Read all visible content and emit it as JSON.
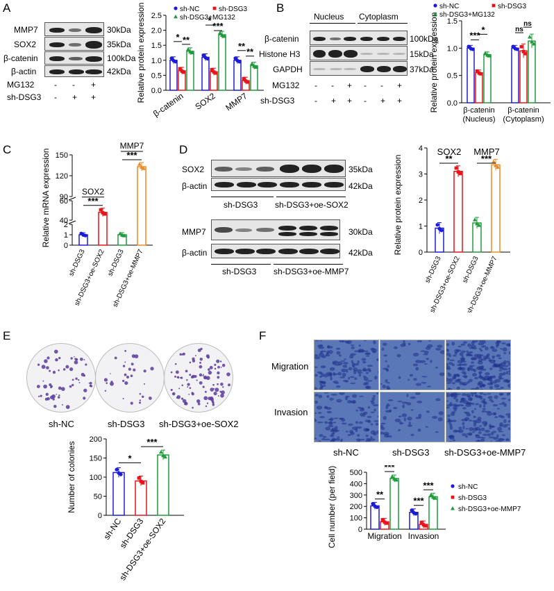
{
  "colors": {
    "nc": "#1c1cd6",
    "dsg3": "#e8141a",
    "third": "#1e9b3a",
    "orange": "#f08a24"
  },
  "panelA": {
    "label": "A",
    "blot_rows": [
      {
        "name": "MMP7",
        "kda": "30kDa"
      },
      {
        "name": "SOX2",
        "kda": "35kDa"
      },
      {
        "name": "β-catenin",
        "kda": "100kDa"
      },
      {
        "name": "β-actin",
        "kda": "42kDa"
      }
    ],
    "mg132": {
      "label": "MG132",
      "signs": [
        "-",
        "-",
        "+"
      ]
    },
    "shdsg3": {
      "label": "sh-DSG3",
      "signs": [
        "-",
        "+",
        "+"
      ]
    },
    "chart": {
      "type": "bar",
      "ylabel": "Relative protein expression",
      "ylim": [
        0,
        2.5
      ],
      "yticks": [
        "0.0",
        "0.5",
        "1.0",
        "1.5",
        "2.0",
        "2.5"
      ],
      "categories": [
        "β-catenin",
        "SOX2",
        "MMP7"
      ],
      "series": [
        {
          "name": "sh-NC",
          "values": [
            1.0,
            1.1,
            1.0
          ]
        },
        {
          "name": "sh-DSG3",
          "values": [
            0.65,
            0.62,
            0.32
          ]
        },
        {
          "name": "sh-DSG3+MG132",
          "values": [
            1.3,
            1.85,
            0.82
          ]
        }
      ],
      "sig": [
        [
          "*",
          "**"
        ],
        [
          "*",
          "***"
        ],
        [
          "**",
          "**"
        ]
      ],
      "legend": [
        "sh-NC",
        "sh-DSG3",
        "sh-DSG3+MG132"
      ]
    }
  },
  "panelB": {
    "label": "B",
    "groups": [
      "Nucleus",
      "Cytoplasm"
    ],
    "blot_rows": [
      {
        "name": "β-catenin",
        "kda": "100kDa"
      },
      {
        "name": "Histone H3",
        "kda": "15kDa"
      },
      {
        "name": "GAPDH",
        "kda": "37kDa"
      }
    ],
    "mg132": {
      "label": "MG132",
      "signs": [
        "-",
        "-",
        "+",
        "-",
        "-",
        "+"
      ]
    },
    "shdsg3": {
      "label": "sh-DSG3",
      "signs": [
        "-",
        "+",
        "+",
        "-",
        "+",
        "+"
      ]
    },
    "chart": {
      "type": "bar",
      "ylabel": "Relative protein expression",
      "ylim": [
        0,
        1.5
      ],
      "yticks": [
        "0.0",
        "0.5",
        "1.0",
        "1.5"
      ],
      "categories": [
        "β-catenin\n(Nucleus)",
        "β-catenin\n(Cytoplasm)"
      ],
      "cat_line1": [
        "β-catenin",
        "β-catenin"
      ],
      "cat_line2": [
        "(Nucleus)",
        "(Cytoplasm)"
      ],
      "series": [
        {
          "name": "sh-NC",
          "values": [
            1.0,
            1.0
          ]
        },
        {
          "name": "sh-DSG3",
          "values": [
            0.55,
            0.95
          ]
        },
        {
          "name": "sh-DSG3+MG132",
          "values": [
            0.88,
            1.13
          ]
        }
      ],
      "sig": [
        [
          "***",
          "*"
        ],
        [
          "ns",
          "ns"
        ]
      ],
      "legend": [
        "sh-NC",
        "sh-DSG3",
        "sh-DSG3+MG132"
      ]
    }
  },
  "panelC": {
    "label": "C",
    "chart": {
      "type": "bar",
      "ylabel": "Relative mRNA expression",
      "yticks_low": [
        "0",
        "1",
        "2"
      ],
      "yticks_mid": [
        "40",
        "60"
      ],
      "yticks_high": [
        "90",
        "120",
        "150"
      ],
      "categories": [
        "sh-DSG3",
        "sh-DSG3+oe-SOX2",
        "sh-DSG3",
        "sh-DSG3+oe-MMP7"
      ],
      "values": [
        1.0,
        48,
        1.0,
        133
      ],
      "group_labels": [
        "SOX2",
        "MMP7"
      ],
      "sig": [
        "***",
        "***"
      ]
    }
  },
  "panelD": {
    "label": "D",
    "blot1": [
      {
        "name": "SOX2",
        "kda": "35kDa"
      },
      {
        "name": "β-actin",
        "kda": "42kDa"
      }
    ],
    "blot1_groups": [
      "sh-DSG3",
      "sh-DSG3+oe-SOX2"
    ],
    "blot2": [
      {
        "name": "MMP7",
        "kda": "30kDa"
      },
      {
        "name": "β-actin",
        "kda": "42kDa"
      }
    ],
    "blot2_groups": [
      "sh-DSG3",
      "sh-DSG3+oe-MMP7"
    ],
    "chart": {
      "type": "bar",
      "ylabel": "Relative protein expression",
      "ylim": [
        0,
        4
      ],
      "yticks": [
        "0",
        "1",
        "2",
        "3",
        "4"
      ],
      "categories": [
        "sh-DSG3",
        "sh-DSG3+oe-SOX2",
        "sh-DSG3",
        "sh-DSG3+oe-MMP7"
      ],
      "values": [
        0.92,
        3.1,
        1.12,
        3.35
      ],
      "group_labels": [
        "SOX2",
        "MMP7"
      ],
      "sig": [
        "**",
        "***"
      ]
    }
  },
  "panelE": {
    "label": "E",
    "dishes": [
      "sh-NC",
      "sh-DSG3",
      "sh-DSG3+oe-SOX2"
    ],
    "chart": {
      "type": "bar",
      "ylabel": "Number of colonies",
      "ylim": [
        0,
        200
      ],
      "yticks": [
        "0",
        "50",
        "100",
        "150",
        "200"
      ],
      "categories": [
        "sh-NC",
        "sh-DSG3",
        "sh-DSG3+oe-SOX2"
      ],
      "values": [
        112,
        90,
        158
      ],
      "sig": [
        "*",
        "***"
      ]
    }
  },
  "panelF": {
    "label": "F",
    "row_labels": [
      "Migration",
      "Invasion"
    ],
    "columns": [
      "sh-NC",
      "sh-DSG3",
      "sh-DSG3+oe-MMP7"
    ],
    "chart": {
      "type": "bar",
      "ylabel": "Cell number (per field)",
      "ylim": [
        0,
        500
      ],
      "yticks": [
        "0",
        "100",
        "200",
        "300",
        "400",
        "500"
      ],
      "categories": [
        "Migration",
        "Invasion"
      ],
      "series": [
        {
          "name": "sh-NC",
          "values": [
            205,
            148
          ]
        },
        {
          "name": "sh-DSG3",
          "values": [
            65,
            42
          ]
        },
        {
          "name": "sh-DSG3+oe-MMP7",
          "values": [
            445,
            285
          ]
        }
      ],
      "sig": [
        [
          "**",
          "***"
        ],
        [
          "***",
          "***"
        ]
      ],
      "legend": [
        "sh-NC",
        "sh-DSG3",
        "sh-DSG3+oe-MMP7"
      ]
    }
  }
}
